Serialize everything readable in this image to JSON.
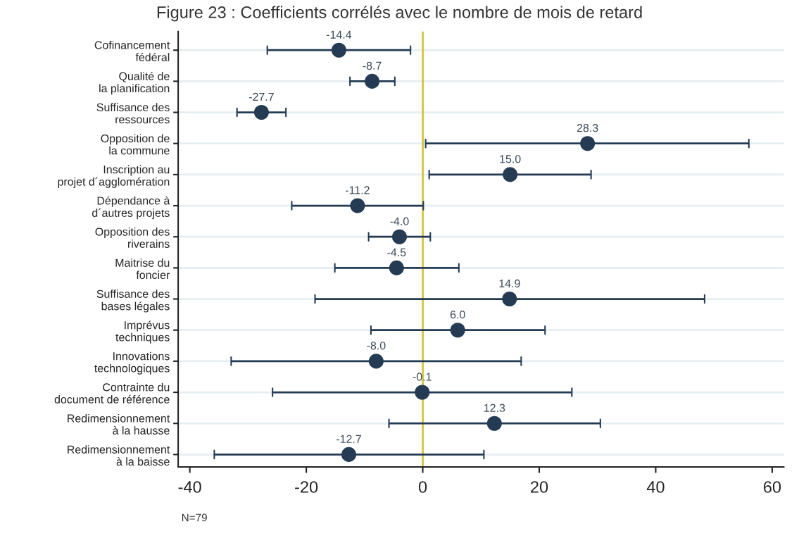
{
  "chart_data": {
    "type": "scatter",
    "orientation": "horizontal",
    "title": "Figure 23 : Coefficients corrélés avec le nombre de mois de retard",
    "categories": [
      "Cofinancement\nfédéral",
      "Qualité de\nla planification",
      "Suffisance des\nressources",
      "Opposition de\nla commune",
      "Inscription au\nprojet d´agglomération",
      "Dépendance à\nd´autres projets",
      "Opposition des\nriverains",
      "Maitrise du\nfoncier",
      "Suffisance des\nbases légales",
      "Imprévus\ntechniques",
      "Innovations\ntechnologiques",
      "Contrainte du\ndocument de référence",
      "Redimensionnement\nà la hausse",
      "Redimensionnement\nà la baisse"
    ],
    "series": [
      {
        "color": "#243b53",
        "values": [
          -14.4,
          -8.7,
          -27.7,
          28.3,
          15.0,
          -11.2,
          -4.0,
          -4.5,
          14.9,
          6.0,
          -8.0,
          -0.1,
          12.3,
          -12.7
        ],
        "value_labels": [
          "-14.4",
          "-8.7",
          "-27.7",
          "28.3",
          "15.0",
          "-11.2",
          "-4.0",
          "-4.5",
          "14.9",
          "6.0",
          "-8.0",
          "-0.1",
          "12.3",
          "-12.7"
        ],
        "errors": [
          [
            -26.7,
            -2.1
          ],
          [
            -12.5,
            -4.8
          ],
          [
            -31.9,
            -23.5
          ],
          [
            0.5,
            56.0
          ],
          [
            1.1,
            28.9
          ],
          [
            -22.5,
            0.1
          ],
          [
            -9.3,
            1.3
          ],
          [
            -15.1,
            6.2
          ],
          [
            -18.5,
            48.4
          ],
          [
            -8.9,
            21.0
          ],
          [
            -32.9,
            16.9
          ],
          [
            -25.8,
            25.6
          ],
          [
            -5.8,
            30.5
          ],
          [
            -35.8,
            10.5
          ]
        ]
      }
    ],
    "marker": "circle",
    "xlim": [
      -42,
      62
    ],
    "xticks": [
      -40,
      -20,
      0,
      20,
      40,
      60
    ],
    "grid": "y",
    "ref_lines": [
      {
        "axis": "x",
        "value": 0,
        "color": "#d4c53a"
      }
    ],
    "annotations": [
      "N=79"
    ]
  }
}
